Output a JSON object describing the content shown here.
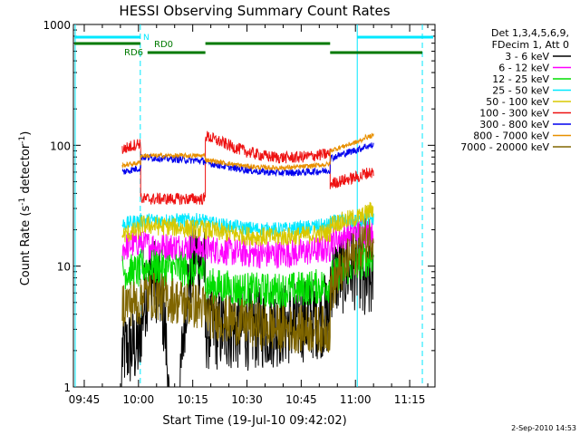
{
  "chart_data": {
    "type": "line",
    "title": "HESSI Observing Summary Count Rates",
    "xlabel": "Start Time (19-Jul-10 09:42:02)",
    "ylabel_main": "Count Rate (s",
    "ylabel_sup1": "-1",
    "ylabel_mid": " detector",
    "ylabel_sup2": "-1",
    "ylabel_end": ")",
    "y_scale": "log",
    "ylim": [
      1,
      1000
    ],
    "x_ticks": [
      {
        "label": "09:45",
        "t": 3
      },
      {
        "label": "10:00",
        "t": 18
      },
      {
        "label": "10:15",
        "t": 33
      },
      {
        "label": "10:30",
        "t": 48
      },
      {
        "label": "10:45",
        "t": 63
      },
      {
        "label": "11:00",
        "t": 78
      },
      {
        "label": "11:15",
        "t": 93
      }
    ],
    "xlim_minutes": [
      0,
      100
    ],
    "y_ticks": [
      {
        "label": "1",
        "v": 1
      },
      {
        "label": "10",
        "v": 10
      },
      {
        "label": "100",
        "v": 100
      },
      {
        "label": "1000",
        "v": 1000
      }
    ],
    "legend_header": [
      "Det 1,3,4,5,6,9,",
      "FDecim 1, Att 0"
    ],
    "legend_placement": "right",
    "series": [
      {
        "name": "3 - 6 keV",
        "color": "#000000"
      },
      {
        "name": "6 - 12 keV",
        "color": "#ff00ff"
      },
      {
        "name": "12 - 25 keV",
        "color": "#00dd00"
      },
      {
        "name": "25 - 50 keV",
        "color": "#00e8ff"
      },
      {
        "name": "50 - 100 keV",
        "color": "#d8c800"
      },
      {
        "name": "100 - 300 keV",
        "color": "#ee1111"
      },
      {
        "name": "300 - 800 keV",
        "color": "#0000ee"
      },
      {
        "name": "800 - 7000 keV",
        "color": "#e89000"
      },
      {
        "name": "7000 - 20000 keV",
        "color": "#806600"
      }
    ],
    "flags": {
      "N_label": "N",
      "RD0_label": "RD0",
      "RD6_label": "RD6"
    },
    "footer_date": "2-Sep-2010 14:53"
  }
}
